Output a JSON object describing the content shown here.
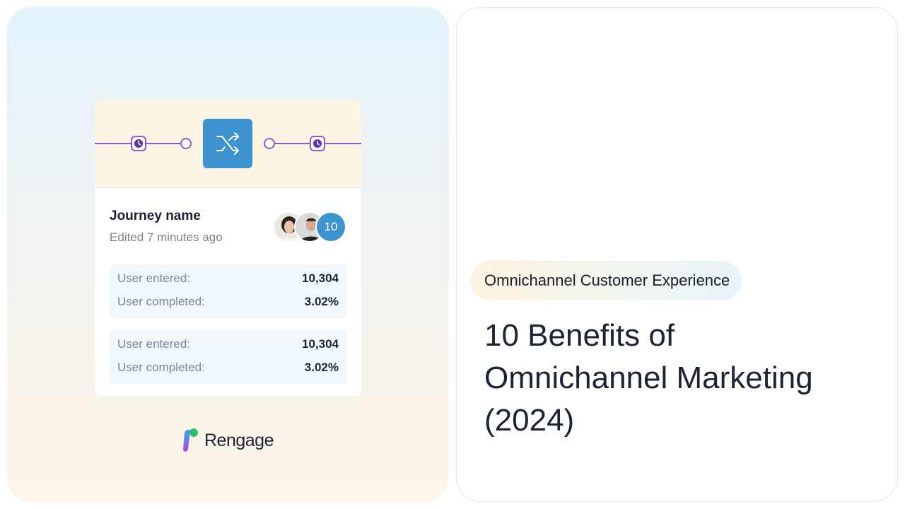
{
  "card": {
    "title": "Journey name",
    "subtitle": "Edited 7 minutes ago",
    "avatar_count": "10",
    "stat_groups": [
      {
        "rows": [
          {
            "label": "User entered:",
            "value": "10,304"
          },
          {
            "label": "User completed:",
            "value": "3.02%"
          }
        ]
      },
      {
        "rows": [
          {
            "label": "User entered:",
            "value": "10,304"
          },
          {
            "label": "User completed:",
            "value": "3.02%"
          }
        ]
      }
    ],
    "icons": [
      "clock-icon",
      "shuffle-icon",
      "clock-icon"
    ]
  },
  "brand": {
    "name": "Rengage"
  },
  "article": {
    "tag": "Omnichannel Customer Experience",
    "title_lines": [
      "10 Benefits of",
      "Omnichannel Marketing",
      "(2024)"
    ]
  },
  "colors": {
    "accent_blue": "#3d93cf",
    "flow_purple": "#8a5bd4",
    "text_dark": "#1c2333"
  }
}
